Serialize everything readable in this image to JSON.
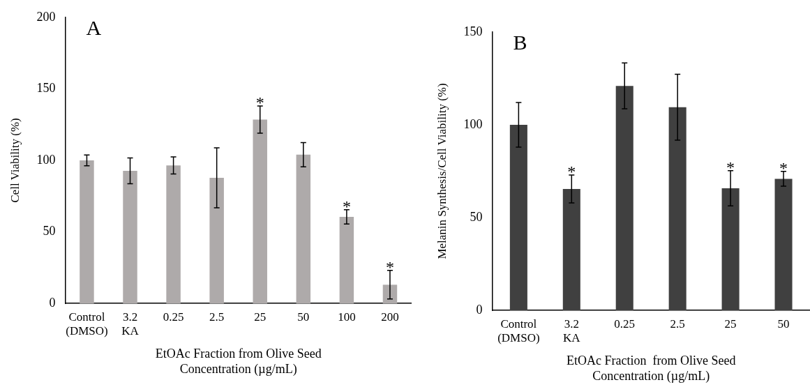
{
  "chart_data": [
    {
      "type": "bar",
      "title": "A",
      "xlabel": "EtOAc Fraction from Olive Seed\nConcentration (µg/mL)",
      "ylabel": "Cell Viability (%)",
      "categories": [
        "Control\n(DMSO)",
        "3.2\nKA",
        "0.25",
        "2.5",
        "25",
        "50",
        "100",
        "200"
      ],
      "values": [
        100,
        92.7,
        96.5,
        87.8,
        128.5,
        104,
        60.5,
        13
      ],
      "color": "#aeaaaa",
      "errors": [
        3.8,
        9,
        6,
        21,
        9.5,
        8.5,
        5,
        10
      ],
      "ylim": [
        0,
        200
      ],
      "yticks": [
        0,
        50,
        100,
        150,
        200
      ],
      "grid": false,
      "annotations": [
        {
          "text": "*",
          "x": "25",
          "y": 138
        },
        {
          "text": "*",
          "x": "100",
          "y": 65.5
        },
        {
          "text": "*",
          "x": "200",
          "y": 23
        }
      ]
    },
    {
      "type": "bar",
      "title": "B",
      "xlabel": "EtOAc Fraction  from Olive Seed\nConcentration (µg/mL)",
      "ylabel": "Melanin Synthesis/Cell Viability (%)",
      "categories": [
        "Control\n(DMSO)",
        "3.2\nKA",
        "0.25",
        "2.5",
        "25",
        "50"
      ],
      "values": [
        100,
        65.4,
        121,
        109.5,
        65.8,
        70.9
      ],
      "color": "#404040",
      "errors": [
        12,
        7.5,
        12.4,
        17.8,
        9.5,
        4
      ],
      "ylim": [
        0,
        150
      ],
      "yticks": [
        0,
        50,
        100,
        150
      ],
      "grid": false,
      "annotations": [
        {
          "text": "*",
          "x": "3.2\nKA",
          "y": 72.9
        },
        {
          "text": "*",
          "x": "25",
          "y": 75.3
        },
        {
          "text": "*",
          "x": "50",
          "y": 74.9
        }
      ]
    }
  ]
}
